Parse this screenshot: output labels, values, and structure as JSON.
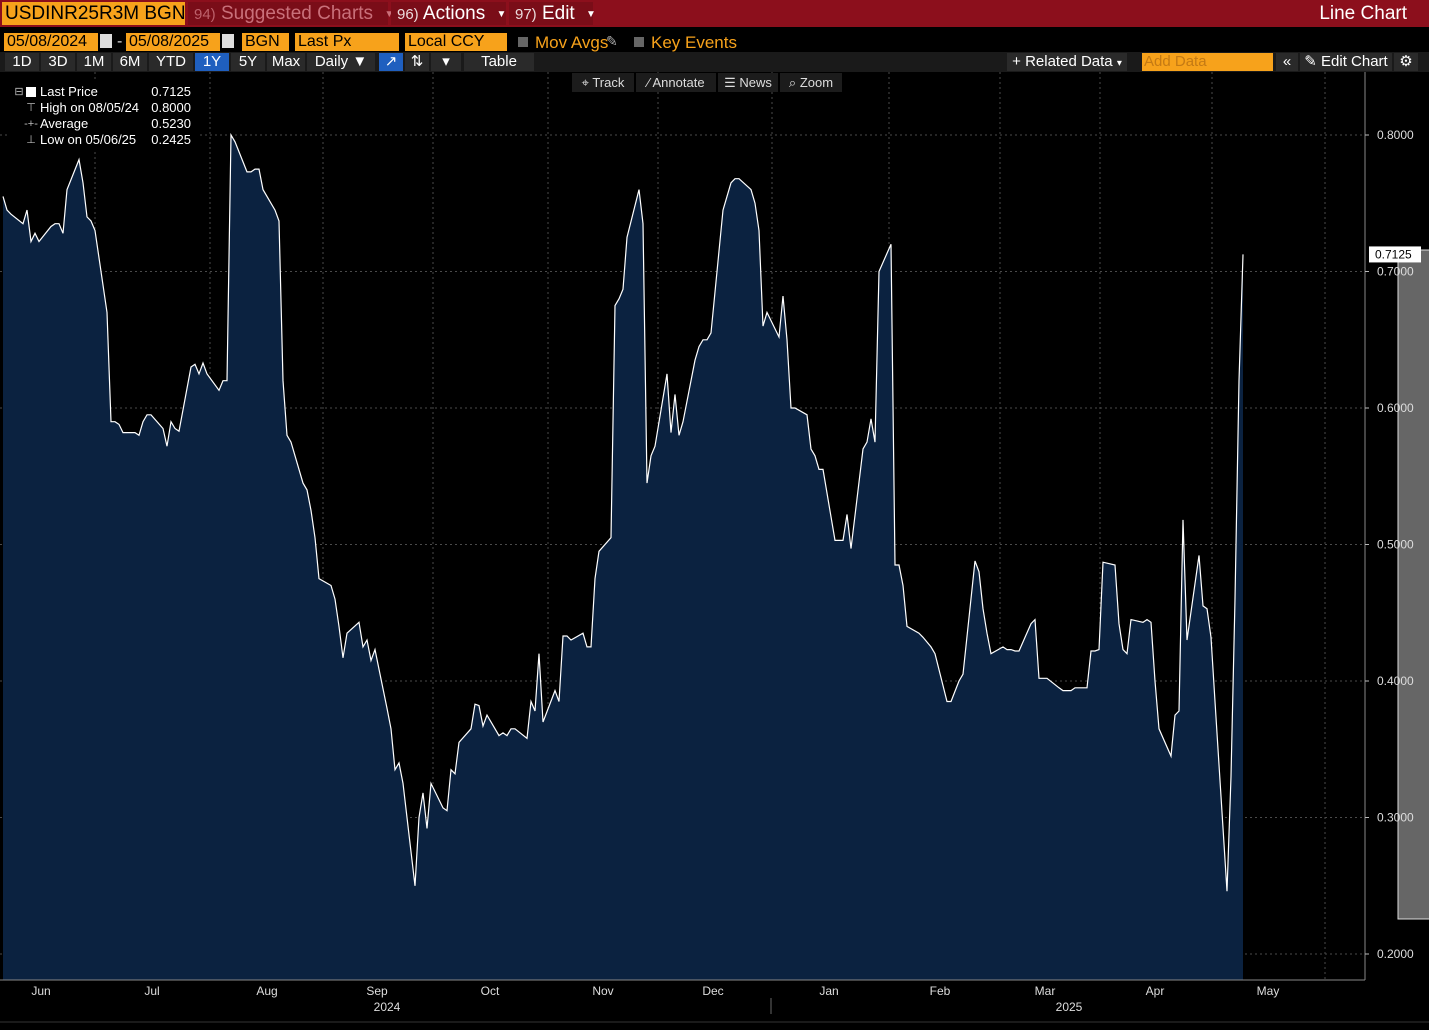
{
  "header": {
    "ticker": "USDINR25R3M BGN",
    "suggested_num": "94)",
    "suggested_label": "Suggested Charts",
    "actions_num": "96)",
    "actions_label": "Actions",
    "edit_num": "97)",
    "edit_label": "Edit",
    "chart_kind": "Line Chart"
  },
  "controls": {
    "start_date": "05/08/2024",
    "end_date": "05/08/2025",
    "dash": "-",
    "source": "BGN",
    "field": "Last Px",
    "currency": "Local CCY",
    "mov_avgs": "Mov Avgs",
    "key_events": "Key Events"
  },
  "periods": [
    "1D",
    "3D",
    "1M",
    "6M",
    "YTD",
    "1Y",
    "5Y",
    "Max"
  ],
  "active_period": "1Y",
  "frequency": "Daily ▼",
  "table_label": "Table",
  "related_data": "+ Related Data",
  "add_data_placeholder": "Add Data",
  "edit_chart": "Edit Chart",
  "tools": {
    "track": "Track",
    "annotate": "Annotate",
    "news": "News",
    "zoom": "Zoom"
  },
  "legend": {
    "last_price_label": "Last Price",
    "last_price_value": "0.7125",
    "high_label": "High on 08/05/24",
    "high_value": "0.8000",
    "average_label": "Average",
    "average_value": "0.5230",
    "low_label": "Low on 05/06/25",
    "low_value": "0.2425"
  },
  "colors": {
    "header_red": "#8c0f1c",
    "accent_orange": "#f7a21b",
    "area_fill": "#0b2240",
    "line": "#ffffff",
    "highlight": "#7f7f7f"
  },
  "chart_data": {
    "type": "area",
    "series_label": "Last Price",
    "ylim": [
      0.19,
      0.84
    ],
    "y_ticks": [
      "0.2000",
      "0.3000",
      "0.4000",
      "0.5000",
      "0.6000",
      "0.7000",
      "0.8000"
    ],
    "last_value_label": "0.7125",
    "x_month_labels": [
      "Jun",
      "Jul",
      "Aug",
      "Sep",
      "Oct",
      "Nov",
      "Dec",
      "Jan",
      "Feb",
      "Mar",
      "Apr",
      "May"
    ],
    "x_year_labels": [
      "2024",
      "2025"
    ],
    "highlight_range": [
      "2025-04-23",
      "2025-05-08"
    ],
    "grid": true,
    "points": [
      [
        "2024-05-08",
        0.755
      ],
      [
        "2024-05-09",
        0.745
      ],
      [
        "2024-05-10",
        0.742
      ],
      [
        "2024-05-13",
        0.735
      ],
      [
        "2024-05-14",
        0.745
      ],
      [
        "2024-05-15",
        0.722
      ],
      [
        "2024-05-16",
        0.728
      ],
      [
        "2024-05-17",
        0.722
      ],
      [
        "2024-05-20",
        0.733
      ],
      [
        "2024-05-21",
        0.735
      ],
      [
        "2024-05-22",
        0.735
      ],
      [
        "2024-05-23",
        0.728
      ],
      [
        "2024-05-24",
        0.76
      ],
      [
        "2024-05-27",
        0.782
      ],
      [
        "2024-05-28",
        0.765
      ],
      [
        "2024-05-29",
        0.74
      ],
      [
        "2024-05-30",
        0.737
      ],
      [
        "2024-05-31",
        0.73
      ],
      [
        "2024-06-03",
        0.67
      ],
      [
        "2024-06-04",
        0.59
      ],
      [
        "2024-06-05",
        0.59
      ],
      [
        "2024-06-06",
        0.588
      ],
      [
        "2024-06-07",
        0.582
      ],
      [
        "2024-06-10",
        0.582
      ],
      [
        "2024-06-11",
        0.58
      ],
      [
        "2024-06-12",
        0.59
      ],
      [
        "2024-06-13",
        0.595
      ],
      [
        "2024-06-14",
        0.595
      ],
      [
        "2024-06-17",
        0.585
      ],
      [
        "2024-06-18",
        0.572
      ],
      [
        "2024-06-19",
        0.59
      ],
      [
        "2024-06-20",
        0.585
      ],
      [
        "2024-06-21",
        0.583
      ],
      [
        "2024-06-24",
        0.63
      ],
      [
        "2024-06-25",
        0.632
      ],
      [
        "2024-06-26",
        0.625
      ],
      [
        "2024-06-27",
        0.633
      ],
      [
        "2024-06-28",
        0.625
      ],
      [
        "2024-07-01",
        0.613
      ],
      [
        "2024-07-02",
        0.62
      ],
      [
        "2024-07-03",
        0.62
      ],
      [
        "2024-07-04",
        0.8
      ],
      [
        "2024-07-05",
        0.795
      ],
      [
        "2024-07-08",
        0.773
      ],
      [
        "2024-07-09",
        0.773
      ],
      [
        "2024-07-10",
        0.775
      ],
      [
        "2024-07-11",
        0.775
      ],
      [
        "2024-07-12",
        0.76
      ],
      [
        "2024-07-15",
        0.745
      ],
      [
        "2024-07-16",
        0.737
      ],
      [
        "2024-07-17",
        0.62
      ],
      [
        "2024-07-18",
        0.58
      ],
      [
        "2024-07-19",
        0.575
      ],
      [
        "2024-07-22",
        0.545
      ],
      [
        "2024-07-23",
        0.54
      ],
      [
        "2024-07-24",
        0.525
      ],
      [
        "2024-07-25",
        0.505
      ],
      [
        "2024-07-26",
        0.475
      ],
      [
        "2024-07-29",
        0.47
      ],
      [
        "2024-07-30",
        0.46
      ],
      [
        "2024-07-31",
        0.44
      ],
      [
        "2024-08-01",
        0.417
      ],
      [
        "2024-08-02",
        0.435
      ],
      [
        "2024-08-05",
        0.443
      ],
      [
        "2024-08-06",
        0.425
      ],
      [
        "2024-08-07",
        0.43
      ],
      [
        "2024-08-08",
        0.415
      ],
      [
        "2024-08-09",
        0.423
      ],
      [
        "2024-08-12",
        0.38
      ],
      [
        "2024-08-13",
        0.365
      ],
      [
        "2024-08-14",
        0.335
      ],
      [
        "2024-08-15",
        0.34
      ],
      [
        "2024-08-16",
        0.325
      ],
      [
        "2024-08-19",
        0.25
      ],
      [
        "2024-08-20",
        0.3
      ],
      [
        "2024-08-21",
        0.318
      ],
      [
        "2024-08-22",
        0.292
      ],
      [
        "2024-08-23",
        0.325
      ],
      [
        "2024-08-26",
        0.307
      ],
      [
        "2024-08-27",
        0.305
      ],
      [
        "2024-08-28",
        0.335
      ],
      [
        "2024-08-29",
        0.332
      ],
      [
        "2024-08-30",
        0.355
      ],
      [
        "2024-09-02",
        0.365
      ],
      [
        "2024-09-03",
        0.383
      ],
      [
        "2024-09-04",
        0.382
      ],
      [
        "2024-09-05",
        0.367
      ],
      [
        "2024-09-06",
        0.375
      ],
      [
        "2024-09-09",
        0.36
      ],
      [
        "2024-09-10",
        0.362
      ],
      [
        "2024-09-11",
        0.36
      ],
      [
        "2024-09-12",
        0.365
      ],
      [
        "2024-09-13",
        0.365
      ],
      [
        "2024-09-16",
        0.358
      ],
      [
        "2024-09-17",
        0.385
      ],
      [
        "2024-09-18",
        0.378
      ],
      [
        "2024-09-19",
        0.42
      ],
      [
        "2024-09-20",
        0.37
      ],
      [
        "2024-09-23",
        0.393
      ],
      [
        "2024-09-24",
        0.385
      ],
      [
        "2024-09-25",
        0.433
      ],
      [
        "2024-09-26",
        0.433
      ],
      [
        "2024-09-27",
        0.43
      ],
      [
        "2024-09-30",
        0.435
      ],
      [
        "2024-10-01",
        0.425
      ],
      [
        "2024-10-02",
        0.425
      ],
      [
        "2024-10-03",
        0.475
      ],
      [
        "2024-10-04",
        0.495
      ],
      [
        "2024-10-07",
        0.505
      ],
      [
        "2024-10-08",
        0.675
      ],
      [
        "2024-10-09",
        0.68
      ],
      [
        "2024-10-10",
        0.687
      ],
      [
        "2024-10-11",
        0.725
      ],
      [
        "2024-10-14",
        0.76
      ],
      [
        "2024-10-15",
        0.735
      ],
      [
        "2024-10-16",
        0.545
      ],
      [
        "2024-10-17",
        0.565
      ],
      [
        "2024-10-18",
        0.572
      ],
      [
        "2024-10-21",
        0.625
      ],
      [
        "2024-10-22",
        0.582
      ],
      [
        "2024-10-23",
        0.61
      ],
      [
        "2024-10-24",
        0.58
      ],
      [
        "2024-10-25",
        0.59
      ],
      [
        "2024-10-28",
        0.635
      ],
      [
        "2024-10-29",
        0.645
      ],
      [
        "2024-10-30",
        0.65
      ],
      [
        "2024-10-31",
        0.65
      ],
      [
        "2024-11-01",
        0.655
      ],
      [
        "2024-11-04",
        0.745
      ],
      [
        "2024-11-05",
        0.755
      ],
      [
        "2024-11-06",
        0.765
      ],
      [
        "2024-11-07",
        0.768
      ],
      [
        "2024-11-08",
        0.768
      ],
      [
        "2024-11-11",
        0.76
      ],
      [
        "2024-11-12",
        0.75
      ],
      [
        "2024-11-13",
        0.73
      ],
      [
        "2024-11-14",
        0.66
      ],
      [
        "2024-11-15",
        0.67
      ],
      [
        "2024-11-18",
        0.652
      ],
      [
        "2024-11-19",
        0.682
      ],
      [
        "2024-11-20",
        0.65
      ],
      [
        "2024-11-21",
        0.6
      ],
      [
        "2024-11-22",
        0.6
      ],
      [
        "2024-11-25",
        0.595
      ],
      [
        "2024-11-26",
        0.57
      ],
      [
        "2024-11-27",
        0.565
      ],
      [
        "2024-11-28",
        0.555
      ],
      [
        "2024-11-29",
        0.555
      ],
      [
        "2024-12-02",
        0.503
      ],
      [
        "2024-12-03",
        0.503
      ],
      [
        "2024-12-04",
        0.503
      ],
      [
        "2024-12-05",
        0.522
      ],
      [
        "2024-12-06",
        0.497
      ],
      [
        "2024-12-09",
        0.57
      ],
      [
        "2024-12-10",
        0.575
      ],
      [
        "2024-12-11",
        0.592
      ],
      [
        "2024-12-12",
        0.575
      ],
      [
        "2024-12-13",
        0.7
      ],
      [
        "2024-12-16",
        0.72
      ],
      [
        "2024-12-17",
        0.485
      ],
      [
        "2024-12-18",
        0.485
      ],
      [
        "2024-12-19",
        0.47
      ],
      [
        "2024-12-20",
        0.44
      ],
      [
        "2024-12-23",
        0.435
      ],
      [
        "2024-12-24",
        0.432
      ],
      [
        "2024-12-26",
        0.425
      ],
      [
        "2024-12-27",
        0.42
      ],
      [
        "2024-12-30",
        0.385
      ],
      [
        "2024-12-31",
        0.385
      ],
      [
        "2025-01-02",
        0.4
      ],
      [
        "2025-01-03",
        0.405
      ],
      [
        "2025-01-06",
        0.488
      ],
      [
        "2025-01-07",
        0.48
      ],
      [
        "2025-01-08",
        0.453
      ],
      [
        "2025-01-09",
        0.435
      ],
      [
        "2025-01-10",
        0.42
      ],
      [
        "2025-01-13",
        0.425
      ],
      [
        "2025-01-14",
        0.423
      ],
      [
        "2025-01-15",
        0.423
      ],
      [
        "2025-01-16",
        0.422
      ],
      [
        "2025-01-17",
        0.422
      ],
      [
        "2025-01-20",
        0.442
      ],
      [
        "2025-01-21",
        0.445
      ],
      [
        "2025-01-22",
        0.402
      ],
      [
        "2025-01-23",
        0.402
      ],
      [
        "2025-01-24",
        0.402
      ],
      [
        "2025-01-27",
        0.395
      ],
      [
        "2025-01-28",
        0.393
      ],
      [
        "2025-01-29",
        0.393
      ],
      [
        "2025-01-30",
        0.393
      ],
      [
        "2025-01-31",
        0.395
      ],
      [
        "2025-02-03",
        0.395
      ],
      [
        "2025-02-04",
        0.422
      ],
      [
        "2025-02-05",
        0.422
      ],
      [
        "2025-02-06",
        0.423
      ],
      [
        "2025-02-07",
        0.487
      ],
      [
        "2025-02-10",
        0.485
      ],
      [
        "2025-02-11",
        0.442
      ],
      [
        "2025-02-12",
        0.423
      ],
      [
        "2025-02-13",
        0.42
      ],
      [
        "2025-02-14",
        0.445
      ],
      [
        "2025-02-17",
        0.443
      ],
      [
        "2025-02-18",
        0.445
      ],
      [
        "2025-02-19",
        0.443
      ],
      [
        "2025-02-20",
        0.4
      ],
      [
        "2025-02-21",
        0.365
      ],
      [
        "2025-02-24",
        0.345
      ],
      [
        "2025-02-25",
        0.375
      ],
      [
        "2025-02-26",
        0.378
      ],
      [
        "2025-02-27",
        0.518
      ],
      [
        "2025-02-28",
        0.43
      ],
      [
        "2025-03-03",
        0.492
      ],
      [
        "2025-03-04",
        0.455
      ],
      [
        "2025-03-05",
        0.453
      ],
      [
        "2025-03-06",
        0.432
      ],
      [
        "2025-03-07",
        0.385
      ],
      [
        "2025-03-10",
        0.246
      ],
      [
        "2025-03-11",
        0.33
      ],
      [
        "2025-03-12",
        0.46
      ],
      [
        "2025-03-13",
        0.62
      ],
      [
        "2025-03-14",
        0.7125
      ]
    ]
  }
}
